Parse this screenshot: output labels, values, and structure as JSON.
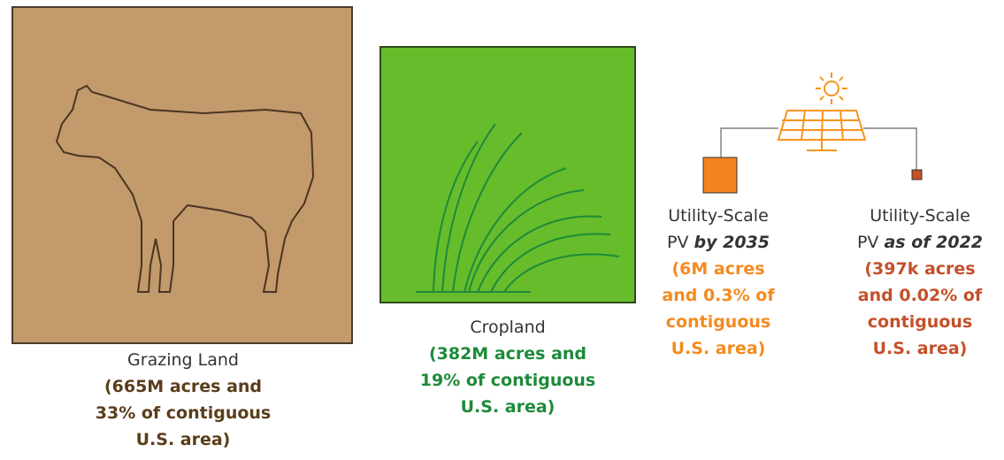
{
  "items": [
    {
      "label": "Grazing Land",
      "detail": [
        "(665M acres and",
        "33% of contiguous",
        "U.S. area)"
      ]
    },
    {
      "label": "Cropland",
      "detail": [
        "(382M acres and",
        "19% of contiguous",
        "U.S. area)"
      ]
    },
    {
      "label": [
        "Utility-Scale",
        "PV"
      ],
      "label_emphasis": "by 2035",
      "detail": [
        "(6M acres",
        "and 0.3% of",
        "contiguous",
        "U.S. area)"
      ]
    },
    {
      "label": [
        "Utility-Scale",
        "PV"
      ],
      "label_emphasis": "as of 2022",
      "detail": [
        "(397k acres",
        "and 0.02% of",
        "contiguous",
        "U.S. area)"
      ]
    }
  ]
}
